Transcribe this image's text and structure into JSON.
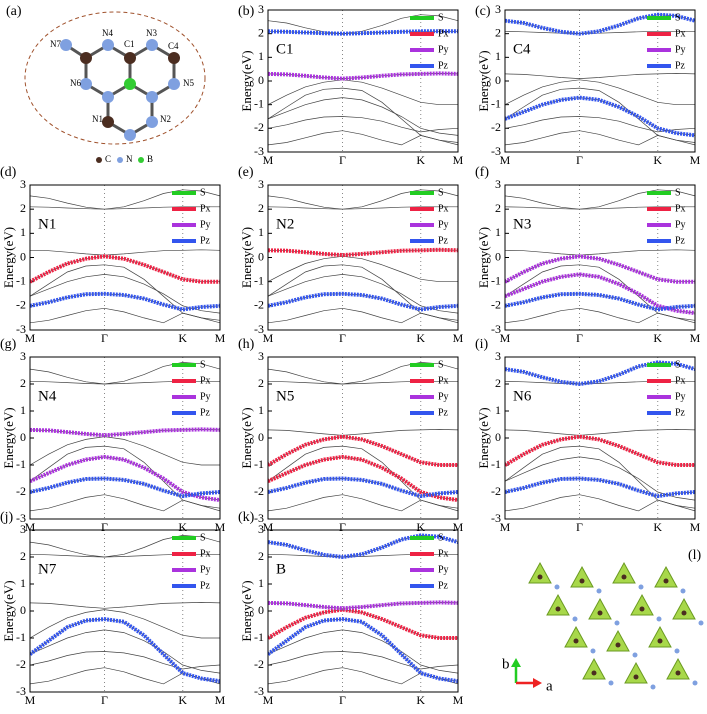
{
  "band_structure": {
    "x": [
      0,
      0.25,
      0.5,
      0.75,
      1,
      1.26,
      1.53,
      1.79,
      2.05,
      2.3,
      2.55
    ],
    "bands": [
      [
        2.55,
        2.45,
        2.25,
        2.08,
        2.0,
        2.1,
        2.35,
        2.65,
        2.8,
        2.75,
        2.55
      ],
      [
        2.1,
        2.08,
        2.05,
        2.02,
        2.0,
        2.02,
        2.05,
        2.08,
        2.1,
        2.1,
        2.1
      ],
      [
        0.3,
        0.28,
        0.22,
        0.15,
        0.1,
        0.15,
        0.22,
        0.28,
        0.3,
        0.32,
        0.3
      ],
      [
        -1.0,
        -0.6,
        -0.25,
        -0.05,
        0.05,
        -0.05,
        -0.3,
        -0.6,
        -0.9,
        -1.0,
        -1.0
      ],
      [
        -1.6,
        -1.3,
        -1.0,
        -0.8,
        -0.7,
        -0.8,
        -1.1,
        -1.5,
        -2.0,
        -2.2,
        -2.3
      ],
      [
        -2.0,
        -1.85,
        -1.65,
        -1.52,
        -1.5,
        -1.55,
        -1.7,
        -1.95,
        -2.15,
        -2.05,
        -2.0
      ],
      [
        -2.7,
        -2.6,
        -2.4,
        -2.2,
        -2.1,
        -2.25,
        -2.5,
        -2.7,
        -2.3,
        -2.5,
        -2.7
      ],
      [
        -1.6,
        -1.1,
        -0.6,
        -0.35,
        -0.3,
        -0.4,
        -0.9,
        -1.6,
        -2.3,
        -2.5,
        -2.6
      ]
    ]
  },
  "chart_data": [
    {
      "type": "line",
      "panel": "(b)",
      "label": "C1",
      "ylabel": "Energy(eV)",
      "xlim": [
        0,
        2.55
      ],
      "xticks": [
        {
          "value": 0,
          "label": "M"
        },
        {
          "value": 1,
          "label": "Γ"
        },
        {
          "value": 2.05,
          "label": "K"
        },
        {
          "value": 2.55,
          "label": "M"
        }
      ],
      "ylim": [
        -3,
        3
      ],
      "yticks": [
        -3,
        -2,
        -1,
        0,
        1,
        2,
        3
      ],
      "legend": [
        {
          "name": "S",
          "color": "#22cc22"
        },
        {
          "name": "Px",
          "color": "#ee2244"
        },
        {
          "name": "Py",
          "color": "#aa33dd"
        },
        {
          "name": "Pz",
          "color": "#3355ee"
        }
      ],
      "series": [
        {
          "color": "#3355ee",
          "values": [
            2.1,
            2.08,
            2.05,
            2.02,
            2.0,
            2.02,
            2.05,
            2.08,
            2.1,
            2.1,
            2.1
          ]
        },
        {
          "color": "#aa33dd",
          "values": [
            0.3,
            0.28,
            0.22,
            0.15,
            0.1,
            0.15,
            0.22,
            0.28,
            0.3,
            0.32,
            0.3
          ]
        }
      ]
    },
    {
      "type": "line",
      "panel": "(c)",
      "label": "C4",
      "ylabel": "Energy(eV)",
      "xlim": [
        0,
        2.55
      ],
      "xticks": [
        {
          "value": 0,
          "label": "M"
        },
        {
          "value": 1,
          "label": "Γ"
        },
        {
          "value": 2.05,
          "label": "K"
        },
        {
          "value": 2.55,
          "label": "M"
        }
      ],
      "ylim": [
        -3,
        3
      ],
      "yticks": [
        -3,
        -2,
        -1,
        0,
        1,
        2,
        3
      ],
      "legend": [
        {
          "name": "S",
          "color": "#22cc22"
        },
        {
          "name": "Px",
          "color": "#ee2244"
        },
        {
          "name": "Py",
          "color": "#aa33dd"
        },
        {
          "name": "Pz",
          "color": "#3355ee"
        }
      ],
      "series": [
        {
          "color": "#3355ee",
          "values": [
            2.55,
            2.45,
            2.25,
            2.08,
            2.0,
            2.1,
            2.35,
            2.65,
            2.8,
            2.75,
            2.55
          ]
        },
        {
          "color": "#3355ee",
          "values": [
            -1.6,
            -1.3,
            -1.0,
            -0.8,
            -0.7,
            -0.8,
            -1.1,
            -1.5,
            -2.0,
            -2.2,
            -2.3
          ]
        }
      ]
    },
    {
      "type": "line",
      "panel": "(d)",
      "label": "N1",
      "ylabel": "Energy(eV)",
      "xlim": [
        0,
        2.55
      ],
      "xticks": [
        {
          "value": 0,
          "label": "M"
        },
        {
          "value": 1,
          "label": "Γ"
        },
        {
          "value": 2.05,
          "label": "K"
        },
        {
          "value": 2.55,
          "label": "M"
        }
      ],
      "ylim": [
        -3,
        3
      ],
      "yticks": [
        -3,
        -2,
        -1,
        0,
        1,
        2,
        3
      ],
      "legend": [
        {
          "name": "S",
          "color": "#22cc22"
        },
        {
          "name": "Px",
          "color": "#ee2244"
        },
        {
          "name": "Py",
          "color": "#aa33dd"
        },
        {
          "name": "Pz",
          "color": "#3355ee"
        }
      ],
      "series": [
        {
          "color": "#ee2244",
          "values": [
            -1.0,
            -0.6,
            -0.25,
            -0.05,
            0.05,
            -0.05,
            -0.3,
            -0.6,
            -0.9,
            -1.0,
            -1.0
          ]
        },
        {
          "color": "#3355ee",
          "values": [
            -2.0,
            -1.85,
            -1.65,
            -1.52,
            -1.5,
            -1.55,
            -1.7,
            -1.95,
            -2.15,
            -2.05,
            -2.0
          ]
        }
      ]
    },
    {
      "type": "line",
      "panel": "(e)",
      "label": "N2",
      "ylabel": "Energy(eV)",
      "xlim": [
        0,
        2.55
      ],
      "xticks": [
        {
          "value": 0,
          "label": "M"
        },
        {
          "value": 1,
          "label": "Γ"
        },
        {
          "value": 2.05,
          "label": "K"
        },
        {
          "value": 2.55,
          "label": "M"
        }
      ],
      "ylim": [
        -3,
        3
      ],
      "yticks": [
        -3,
        -2,
        -1,
        0,
        1,
        2,
        3
      ],
      "legend": [
        {
          "name": "S",
          "color": "#22cc22"
        },
        {
          "name": "Px",
          "color": "#ee2244"
        },
        {
          "name": "Py",
          "color": "#aa33dd"
        },
        {
          "name": "Pz",
          "color": "#3355ee"
        }
      ],
      "series": [
        {
          "color": "#ee2244",
          "values": [
            0.3,
            0.28,
            0.22,
            0.15,
            0.1,
            0.15,
            0.22,
            0.28,
            0.3,
            0.32,
            0.3
          ]
        },
        {
          "color": "#3355ee",
          "values": [
            -2.0,
            -1.85,
            -1.65,
            -1.52,
            -1.5,
            -1.55,
            -1.7,
            -1.95,
            -2.15,
            -2.05,
            -2.0
          ]
        }
      ]
    },
    {
      "type": "line",
      "panel": "(f)",
      "label": "N3",
      "ylabel": "Energy(eV)",
      "xlim": [
        0,
        2.55
      ],
      "xticks": [
        {
          "value": 0,
          "label": "M"
        },
        {
          "value": 1,
          "label": "Γ"
        },
        {
          "value": 2.05,
          "label": "K"
        },
        {
          "value": 2.55,
          "label": "M"
        }
      ],
      "ylim": [
        -3,
        3
      ],
      "yticks": [
        -3,
        -2,
        -1,
        0,
        1,
        2,
        3
      ],
      "legend": [
        {
          "name": "S",
          "color": "#22cc22"
        },
        {
          "name": "Px",
          "color": "#ee2244"
        },
        {
          "name": "Py",
          "color": "#aa33dd"
        },
        {
          "name": "Pz",
          "color": "#3355ee"
        }
      ],
      "series": [
        {
          "color": "#aa33dd",
          "values": [
            -1.6,
            -1.3,
            -1.0,
            -0.8,
            -0.7,
            -0.8,
            -1.1,
            -1.5,
            -2.0,
            -2.2,
            -2.3
          ]
        },
        {
          "color": "#aa33dd",
          "values": [
            -1.0,
            -0.6,
            -0.25,
            -0.05,
            0.05,
            -0.05,
            -0.3,
            -0.6,
            -0.9,
            -1.0,
            -1.0
          ]
        },
        {
          "color": "#3355ee",
          "values": [
            -2.0,
            -1.85,
            -1.65,
            -1.52,
            -1.5,
            -1.55,
            -1.7,
            -1.95,
            -2.15,
            -2.05,
            -2.0
          ]
        }
      ]
    },
    {
      "type": "line",
      "panel": "(g)",
      "label": "N4",
      "ylabel": "Energy(eV)",
      "xlim": [
        0,
        2.55
      ],
      "xticks": [
        {
          "value": 0,
          "label": "M"
        },
        {
          "value": 1,
          "label": "Γ"
        },
        {
          "value": 2.05,
          "label": "K"
        },
        {
          "value": 2.55,
          "label": "M"
        }
      ],
      "ylim": [
        -3,
        3
      ],
      "yticks": [
        -3,
        -2,
        -1,
        0,
        1,
        2,
        3
      ],
      "legend": [
        {
          "name": "S",
          "color": "#22cc22"
        },
        {
          "name": "Px",
          "color": "#ee2244"
        },
        {
          "name": "Py",
          "color": "#aa33dd"
        },
        {
          "name": "Pz",
          "color": "#3355ee"
        }
      ],
      "series": [
        {
          "color": "#aa33dd",
          "values": [
            0.3,
            0.28,
            0.22,
            0.15,
            0.1,
            0.15,
            0.22,
            0.28,
            0.3,
            0.32,
            0.3
          ]
        },
        {
          "color": "#aa33dd",
          "values": [
            -1.6,
            -1.3,
            -1.0,
            -0.8,
            -0.7,
            -0.8,
            -1.1,
            -1.5,
            -2.0,
            -2.2,
            -2.3
          ]
        },
        {
          "color": "#3355ee",
          "values": [
            -2.0,
            -1.85,
            -1.65,
            -1.52,
            -1.5,
            -1.55,
            -1.7,
            -1.95,
            -2.15,
            -2.05,
            -2.0
          ]
        }
      ]
    },
    {
      "type": "line",
      "panel": "(h)",
      "label": "N5",
      "ylabel": "Energy(eV)",
      "xlim": [
        0,
        2.55
      ],
      "xticks": [
        {
          "value": 0,
          "label": "M"
        },
        {
          "value": 1,
          "label": "Γ"
        },
        {
          "value": 2.05,
          "label": "K"
        },
        {
          "value": 2.55,
          "label": "M"
        }
      ],
      "ylim": [
        -3,
        3
      ],
      "yticks": [
        -3,
        -2,
        -1,
        0,
        1,
        2,
        3
      ],
      "legend": [
        {
          "name": "S",
          "color": "#22cc22"
        },
        {
          "name": "Px",
          "color": "#ee2244"
        },
        {
          "name": "Py",
          "color": "#aa33dd"
        },
        {
          "name": "Pz",
          "color": "#3355ee"
        }
      ],
      "series": [
        {
          "color": "#ee2244",
          "values": [
            -1.0,
            -0.6,
            -0.25,
            -0.05,
            0.05,
            -0.05,
            -0.3,
            -0.6,
            -0.9,
            -1.0,
            -1.0
          ]
        },
        {
          "color": "#ee2244",
          "values": [
            -1.6,
            -1.3,
            -1.0,
            -0.8,
            -0.7,
            -0.8,
            -1.1,
            -1.5,
            -2.0,
            -2.2,
            -2.3
          ]
        },
        {
          "color": "#3355ee",
          "values": [
            -2.0,
            -1.85,
            -1.65,
            -1.52,
            -1.5,
            -1.55,
            -1.7,
            -1.95,
            -2.15,
            -2.05,
            -2.0
          ]
        }
      ]
    },
    {
      "type": "line",
      "panel": "(i)",
      "label": "N6",
      "ylabel": "Energy(eV)",
      "xlim": [
        0,
        2.55
      ],
      "xticks": [
        {
          "value": 0,
          "label": "M"
        },
        {
          "value": 1,
          "label": "Γ"
        },
        {
          "value": 2.05,
          "label": "K"
        },
        {
          "value": 2.55,
          "label": "M"
        }
      ],
      "ylim": [
        -3,
        3
      ],
      "yticks": [
        -3,
        -2,
        -1,
        0,
        1,
        2,
        3
      ],
      "legend": [
        {
          "name": "S",
          "color": "#22cc22"
        },
        {
          "name": "Px",
          "color": "#ee2244"
        },
        {
          "name": "Py",
          "color": "#aa33dd"
        },
        {
          "name": "Pz",
          "color": "#3355ee"
        }
      ],
      "series": [
        {
          "color": "#ee2244",
          "values": [
            -1.0,
            -0.6,
            -0.25,
            -0.05,
            0.05,
            -0.05,
            -0.3,
            -0.6,
            -0.9,
            -1.0,
            -1.0
          ]
        },
        {
          "color": "#3355ee",
          "values": [
            -2.0,
            -1.85,
            -1.65,
            -1.52,
            -1.5,
            -1.55,
            -1.7,
            -1.95,
            -2.15,
            -2.05,
            -2.0
          ]
        },
        {
          "color": "#3355ee",
          "values": [
            2.55,
            2.45,
            2.25,
            2.08,
            2.0,
            2.1,
            2.35,
            2.65,
            2.8,
            2.75,
            2.55
          ]
        }
      ]
    },
    {
      "type": "line",
      "panel": "(j)",
      "label": "N7",
      "ylabel": "Energy(eV)",
      "xlim": [
        0,
        2.55
      ],
      "xticks": [
        {
          "value": 0,
          "label": "M"
        },
        {
          "value": 1,
          "label": "Γ"
        },
        {
          "value": 2.05,
          "label": "K"
        },
        {
          "value": 2.55,
          "label": "M"
        }
      ],
      "ylim": [
        -3,
        3
      ],
      "yticks": [
        -3,
        -2,
        -1,
        0,
        1,
        2,
        3
      ],
      "legend": [
        {
          "name": "S",
          "color": "#22cc22"
        },
        {
          "name": "Px",
          "color": "#ee2244"
        },
        {
          "name": "Py",
          "color": "#aa33dd"
        },
        {
          "name": "Pz",
          "color": "#3355ee"
        }
      ],
      "series": [
        {
          "color": "#3355ee",
          "values": [
            -1.6,
            -1.1,
            -0.6,
            -0.35,
            -0.3,
            -0.4,
            -0.9,
            -1.6,
            -2.3,
            -2.5,
            -2.6
          ]
        }
      ]
    },
    {
      "type": "line",
      "panel": "(k)",
      "label": "B",
      "ylabel": "Energy(eV)",
      "xlim": [
        0,
        2.55
      ],
      "xticks": [
        {
          "value": 0,
          "label": "M"
        },
        {
          "value": 1,
          "label": "Γ"
        },
        {
          "value": 2.05,
          "label": "K"
        },
        {
          "value": 2.55,
          "label": "M"
        }
      ],
      "ylim": [
        -3,
        3
      ],
      "yticks": [
        -3,
        -2,
        -1,
        0,
        1,
        2,
        3
      ],
      "legend": [
        {
          "name": "S",
          "color": "#22cc22"
        },
        {
          "name": "Px",
          "color": "#ee2244"
        },
        {
          "name": "Py",
          "color": "#aa33dd"
        },
        {
          "name": "Pz",
          "color": "#3355ee"
        }
      ],
      "series": [
        {
          "color": "#3355ee",
          "values": [
            2.55,
            2.45,
            2.25,
            2.08,
            2.0,
            2.1,
            2.35,
            2.65,
            2.8,
            2.75,
            2.55
          ]
        },
        {
          "color": "#ee2244",
          "values": [
            -1.0,
            -0.6,
            -0.25,
            -0.05,
            0.05,
            -0.05,
            -0.3,
            -0.6,
            -0.9,
            -1.0,
            -1.0
          ]
        },
        {
          "color": "#aa33dd",
          "values": [
            0.3,
            0.28,
            0.22,
            0.15,
            0.1,
            0.15,
            0.22,
            0.28,
            0.3,
            0.32,
            0.3
          ]
        },
        {
          "color": "#3355ee",
          "values": [
            -1.6,
            -1.1,
            -0.6,
            -0.35,
            -0.3,
            -0.4,
            -0.9,
            -1.6,
            -2.3,
            -2.5,
            -2.6
          ]
        }
      ]
    }
  ],
  "diagram": {
    "panel": "(a)",
    "atoms": [
      "N7",
      "N4",
      "C1",
      "N3",
      "C4",
      "N6",
      "N5",
      "N1",
      "N2"
    ],
    "legend": [
      "C",
      "N",
      "B"
    ]
  },
  "lattice": {
    "panel": "(l)",
    "axes": [
      "b",
      "a"
    ]
  }
}
